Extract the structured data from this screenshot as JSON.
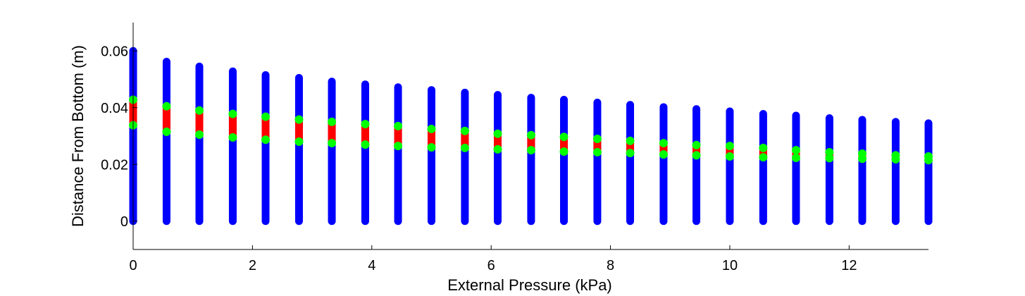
{
  "chart_data": {
    "type": "scatter",
    "title": "",
    "xlabel": "External Pressure (kPa)",
    "ylabel": "Distance From Bottom (m)",
    "xlim": [
      0,
      13.33
    ],
    "ylim": [
      -0.01,
      0.07
    ],
    "xticks": [
      0,
      2,
      4,
      6,
      8,
      10,
      12
    ],
    "yticks": [
      0,
      0.02,
      0.04,
      0.06
    ],
    "xtick_labels": [
      "0",
      "2",
      "4",
      "6",
      "8",
      "10",
      "12"
    ],
    "ytick_labels": [
      "0",
      "0.02",
      "0.04",
      "0.06"
    ],
    "grid": false,
    "colors": {
      "column": "#0000ff",
      "band": "#ff0000",
      "band_edge": "#00ff00"
    },
    "columns": [
      {
        "x": 0.0,
        "top": 0.06,
        "band_low": 0.0338,
        "band_high": 0.0428
      },
      {
        "x": 0.56,
        "top": 0.0562,
        "band_low": 0.0315,
        "band_high": 0.0405
      },
      {
        "x": 1.11,
        "top": 0.0545,
        "band_low": 0.0305,
        "band_high": 0.039
      },
      {
        "x": 1.67,
        "top": 0.0528,
        "band_low": 0.0295,
        "band_high": 0.0378
      },
      {
        "x": 2.22,
        "top": 0.0515,
        "band_low": 0.0287,
        "band_high": 0.0368
      },
      {
        "x": 2.78,
        "top": 0.0505,
        "band_low": 0.028,
        "band_high": 0.0358
      },
      {
        "x": 3.33,
        "top": 0.0492,
        "band_low": 0.0275,
        "band_high": 0.035
      },
      {
        "x": 3.89,
        "top": 0.0482,
        "band_low": 0.027,
        "band_high": 0.0342
      },
      {
        "x": 4.44,
        "top": 0.0472,
        "band_low": 0.0265,
        "band_high": 0.0335
      },
      {
        "x": 5.0,
        "top": 0.0462,
        "band_low": 0.026,
        "band_high": 0.0325
      },
      {
        "x": 5.56,
        "top": 0.0453,
        "band_low": 0.0258,
        "band_high": 0.0318
      },
      {
        "x": 6.11,
        "top": 0.0445,
        "band_low": 0.0253,
        "band_high": 0.0308
      },
      {
        "x": 6.67,
        "top": 0.0435,
        "band_low": 0.025,
        "band_high": 0.0303
      },
      {
        "x": 7.22,
        "top": 0.0428,
        "band_low": 0.0245,
        "band_high": 0.0297
      },
      {
        "x": 7.78,
        "top": 0.0418,
        "band_low": 0.0243,
        "band_high": 0.029
      },
      {
        "x": 8.33,
        "top": 0.041,
        "band_low": 0.024,
        "band_high": 0.0283
      },
      {
        "x": 8.89,
        "top": 0.0402,
        "band_low": 0.0235,
        "band_high": 0.0275
      },
      {
        "x": 9.44,
        "top": 0.0395,
        "band_low": 0.0232,
        "band_high": 0.0268
      },
      {
        "x": 10.0,
        "top": 0.0387,
        "band_low": 0.0228,
        "band_high": 0.0265
      },
      {
        "x": 10.56,
        "top": 0.0378,
        "band_low": 0.0225,
        "band_high": 0.0258
      },
      {
        "x": 11.11,
        "top": 0.0372,
        "band_low": 0.0223,
        "band_high": 0.025
      },
      {
        "x": 11.67,
        "top": 0.0363,
        "band_low": 0.0222,
        "band_high": 0.0243
      },
      {
        "x": 12.22,
        "top": 0.0357,
        "band_low": 0.022,
        "band_high": 0.0238
      },
      {
        "x": 12.78,
        "top": 0.035,
        "band_low": 0.0218,
        "band_high": 0.0232
      },
      {
        "x": 13.33,
        "top": 0.0345,
        "band_low": 0.0215,
        "band_high": 0.0228
      }
    ]
  }
}
